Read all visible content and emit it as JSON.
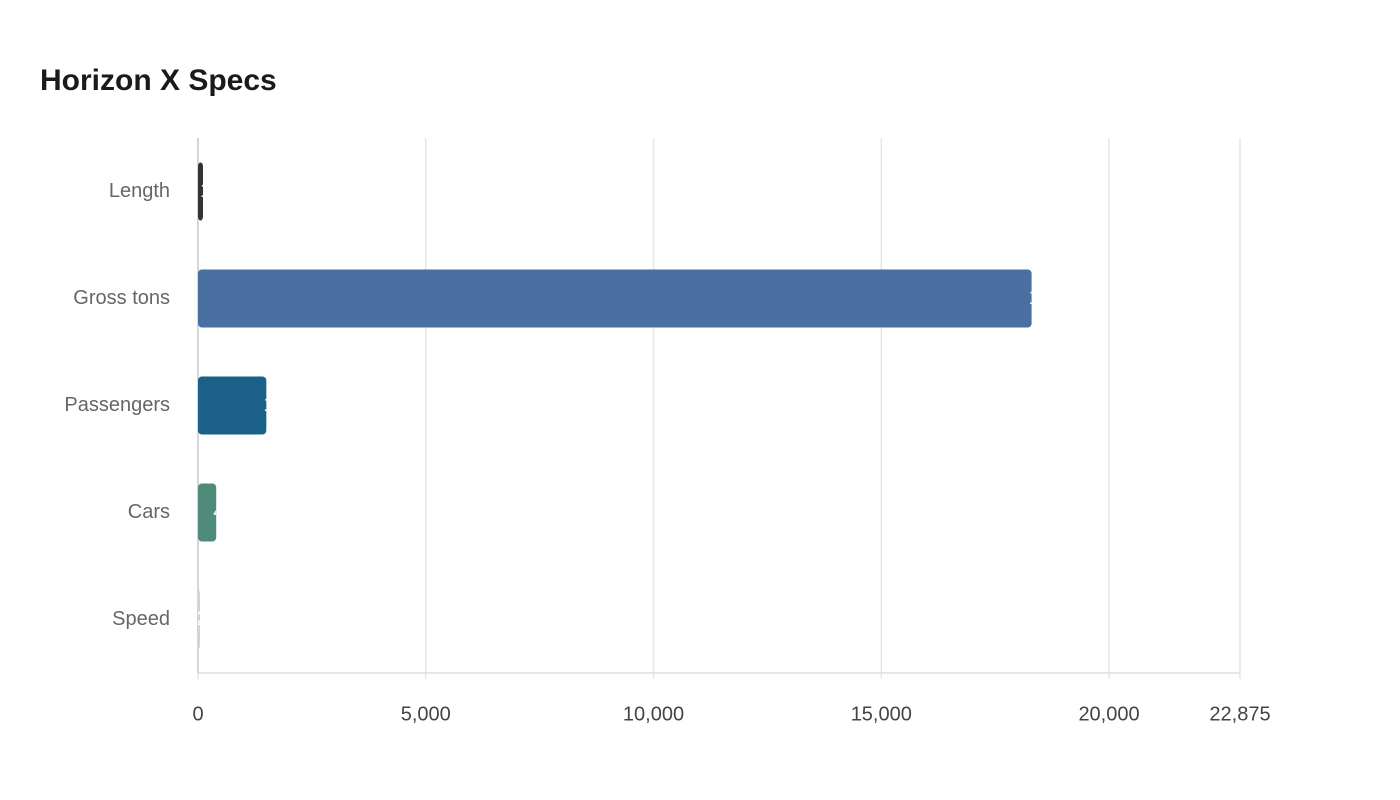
{
  "chart_data": {
    "type": "bar",
    "orientation": "horizontal",
    "title": "Horizon X Specs",
    "categories": [
      "Length",
      "Gross tons",
      "Passengers",
      "Cars",
      "Speed"
    ],
    "values": [
      110,
      18300,
      1500,
      400,
      22
    ],
    "colors": [
      "#333333",
      "#4a6fa1",
      "#1a6088",
      "#4f8a7b",
      "#d3d3d3"
    ],
    "xlim": [
      0,
      22875
    ],
    "xticks": [
      0,
      {
        "value": 5000,
        "label": "5,000"
      },
      {
        "value": 10000,
        "label": "10,000"
      },
      {
        "value": 15000,
        "label": "15,000"
      },
      {
        "value": 20000,
        "label": "20,000"
      },
      {
        "value": 22875,
        "label": "22,875"
      }
    ],
    "grid": true
  }
}
